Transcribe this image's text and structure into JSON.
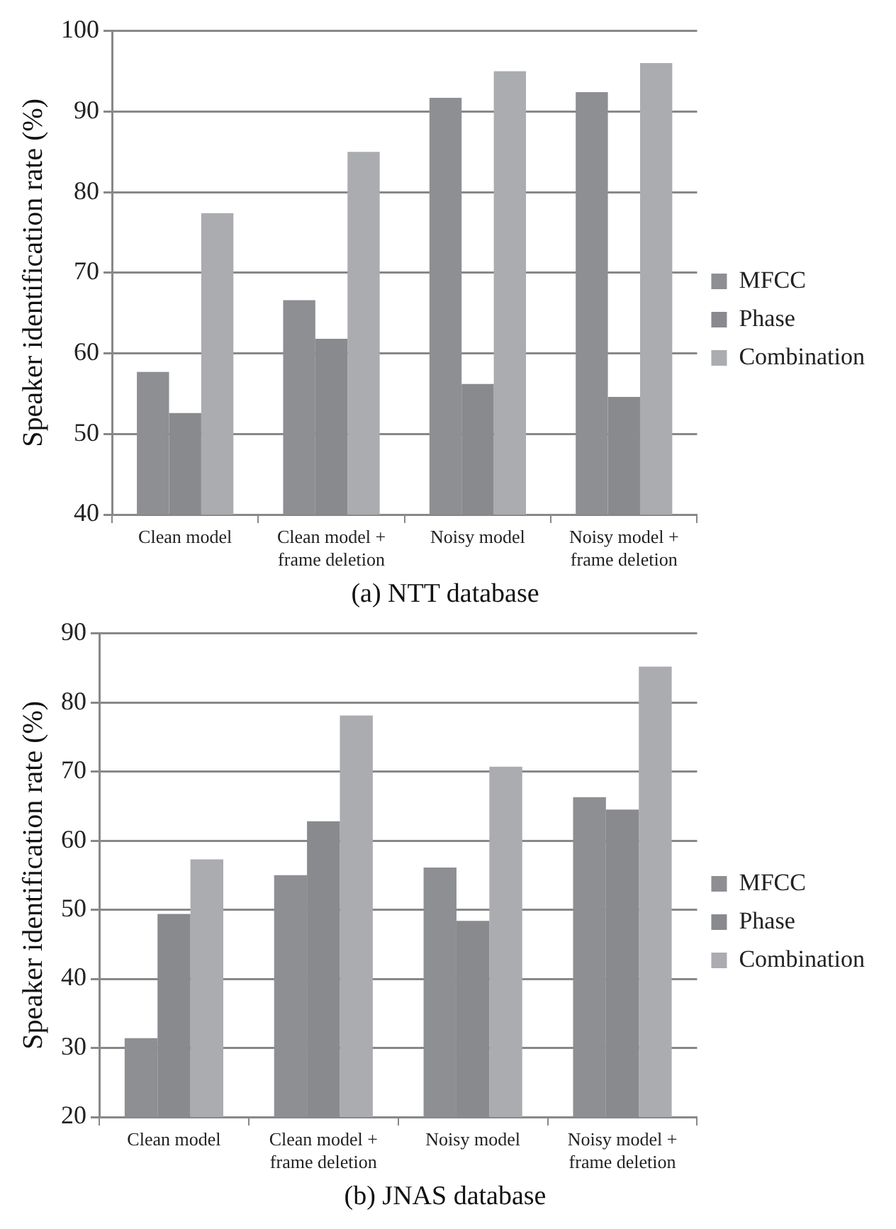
{
  "chart_data": [
    {
      "type": "bar",
      "title": "(a) NTT database",
      "ylabel": "Speaker identification rate (%)",
      "categories": [
        "Clean model",
        "Clean model + frame deletion",
        "Noisy model",
        "Noisy model + frame deletion"
      ],
      "series": [
        {
          "name": "MFCC",
          "color": "#8e8f93",
          "values": [
            57.7,
            66.6,
            91.7,
            92.4
          ]
        },
        {
          "name": "Phase",
          "color": "#898a8e",
          "values": [
            52.6,
            61.8,
            56.2,
            54.6
          ]
        },
        {
          "name": "Combination",
          "color": "#abacb0",
          "values": [
            77.4,
            85.0,
            95.0,
            96.0
          ]
        }
      ],
      "ylim": [
        40,
        100
      ],
      "yticks": [
        40,
        50,
        60,
        70,
        80,
        90,
        100
      ],
      "grid": "y",
      "legend": "right"
    },
    {
      "type": "bar",
      "title": "(b) JNAS database",
      "ylabel": "Speaker identification rate (%)",
      "categories": [
        "Clean model",
        "Clean model + frame deletion",
        "Noisy model",
        "Noisy model + frame deletion"
      ],
      "series": [
        {
          "name": "MFCC",
          "color": "#8e8f93",
          "values": [
            31.4,
            55.0,
            56.1,
            66.3
          ]
        },
        {
          "name": "Phase",
          "color": "#898a8e",
          "values": [
            49.4,
            62.8,
            48.4,
            64.5
          ]
        },
        {
          "name": "Combination",
          "color": "#abacb0",
          "values": [
            57.3,
            78.1,
            70.7,
            85.2
          ]
        }
      ],
      "ylim": [
        20,
        90
      ],
      "yticks": [
        20,
        30,
        40,
        50,
        60,
        70,
        80,
        90
      ],
      "grid": "y",
      "legend": "right"
    }
  ]
}
